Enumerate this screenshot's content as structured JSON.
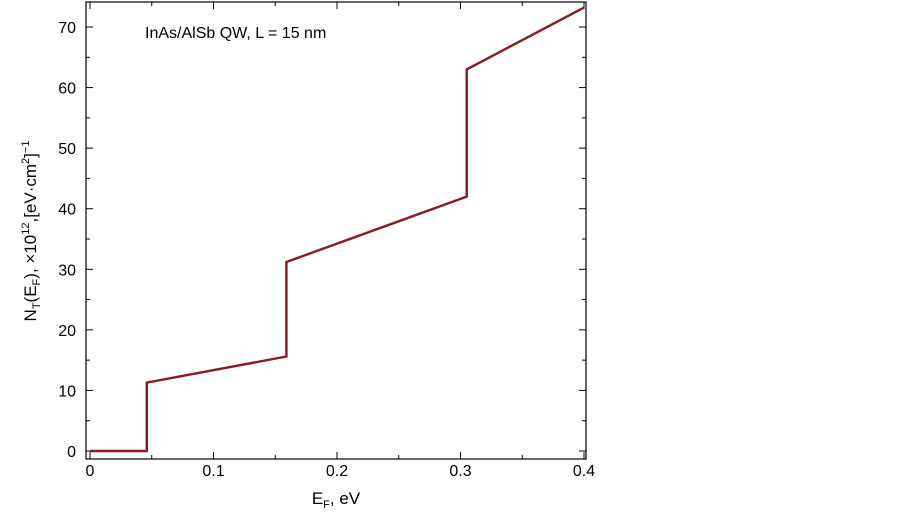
{
  "chart_data": {
    "type": "line",
    "annotation": "InAs/AlSb  QW, L = 15 nm",
    "xlabel": {
      "main": "E",
      "sub": "F",
      "rest": ", eV"
    },
    "ylabel": {
      "p1": "N",
      "s1": "T",
      "p2": "(E",
      "s2": "F",
      "p3": "), ×10",
      "sup1": "12",
      "p4": ",[eV·cm",
      "sup2": "2",
      "p5": "]",
      "sup3": "−1"
    },
    "xlim": [
      0,
      0.4
    ],
    "ylim": [
      0,
      73
    ],
    "xticks": [
      {
        "value": 0,
        "label": "0"
      },
      {
        "value": 0.1,
        "label": "0.1"
      },
      {
        "value": 0.2,
        "label": "0.2"
      },
      {
        "value": 0.3,
        "label": "0.3"
      },
      {
        "value": 0.4,
        "label": "0.4"
      }
    ],
    "yticks": [
      {
        "value": 0,
        "label": "0"
      },
      {
        "value": 10,
        "label": "10"
      },
      {
        "value": 20,
        "label": "20"
      },
      {
        "value": 30,
        "label": "30"
      },
      {
        "value": 40,
        "label": "40"
      },
      {
        "value": 50,
        "label": "50"
      },
      {
        "value": 60,
        "label": "60"
      },
      {
        "value": 70,
        "label": "70"
      }
    ],
    "x_minor_step": 0.05,
    "y_minor_step": 5,
    "grid": false,
    "series": [
      {
        "color": "#8b1a22",
        "points": [
          [
            0.0,
            0.0
          ],
          [
            0.046,
            0.0
          ],
          [
            0.046,
            11.3
          ],
          [
            0.159,
            15.6
          ],
          [
            0.159,
            31.2
          ],
          [
            0.305,
            42.0
          ],
          [
            0.305,
            63.0
          ],
          [
            0.4,
            73.2
          ]
        ]
      }
    ]
  }
}
